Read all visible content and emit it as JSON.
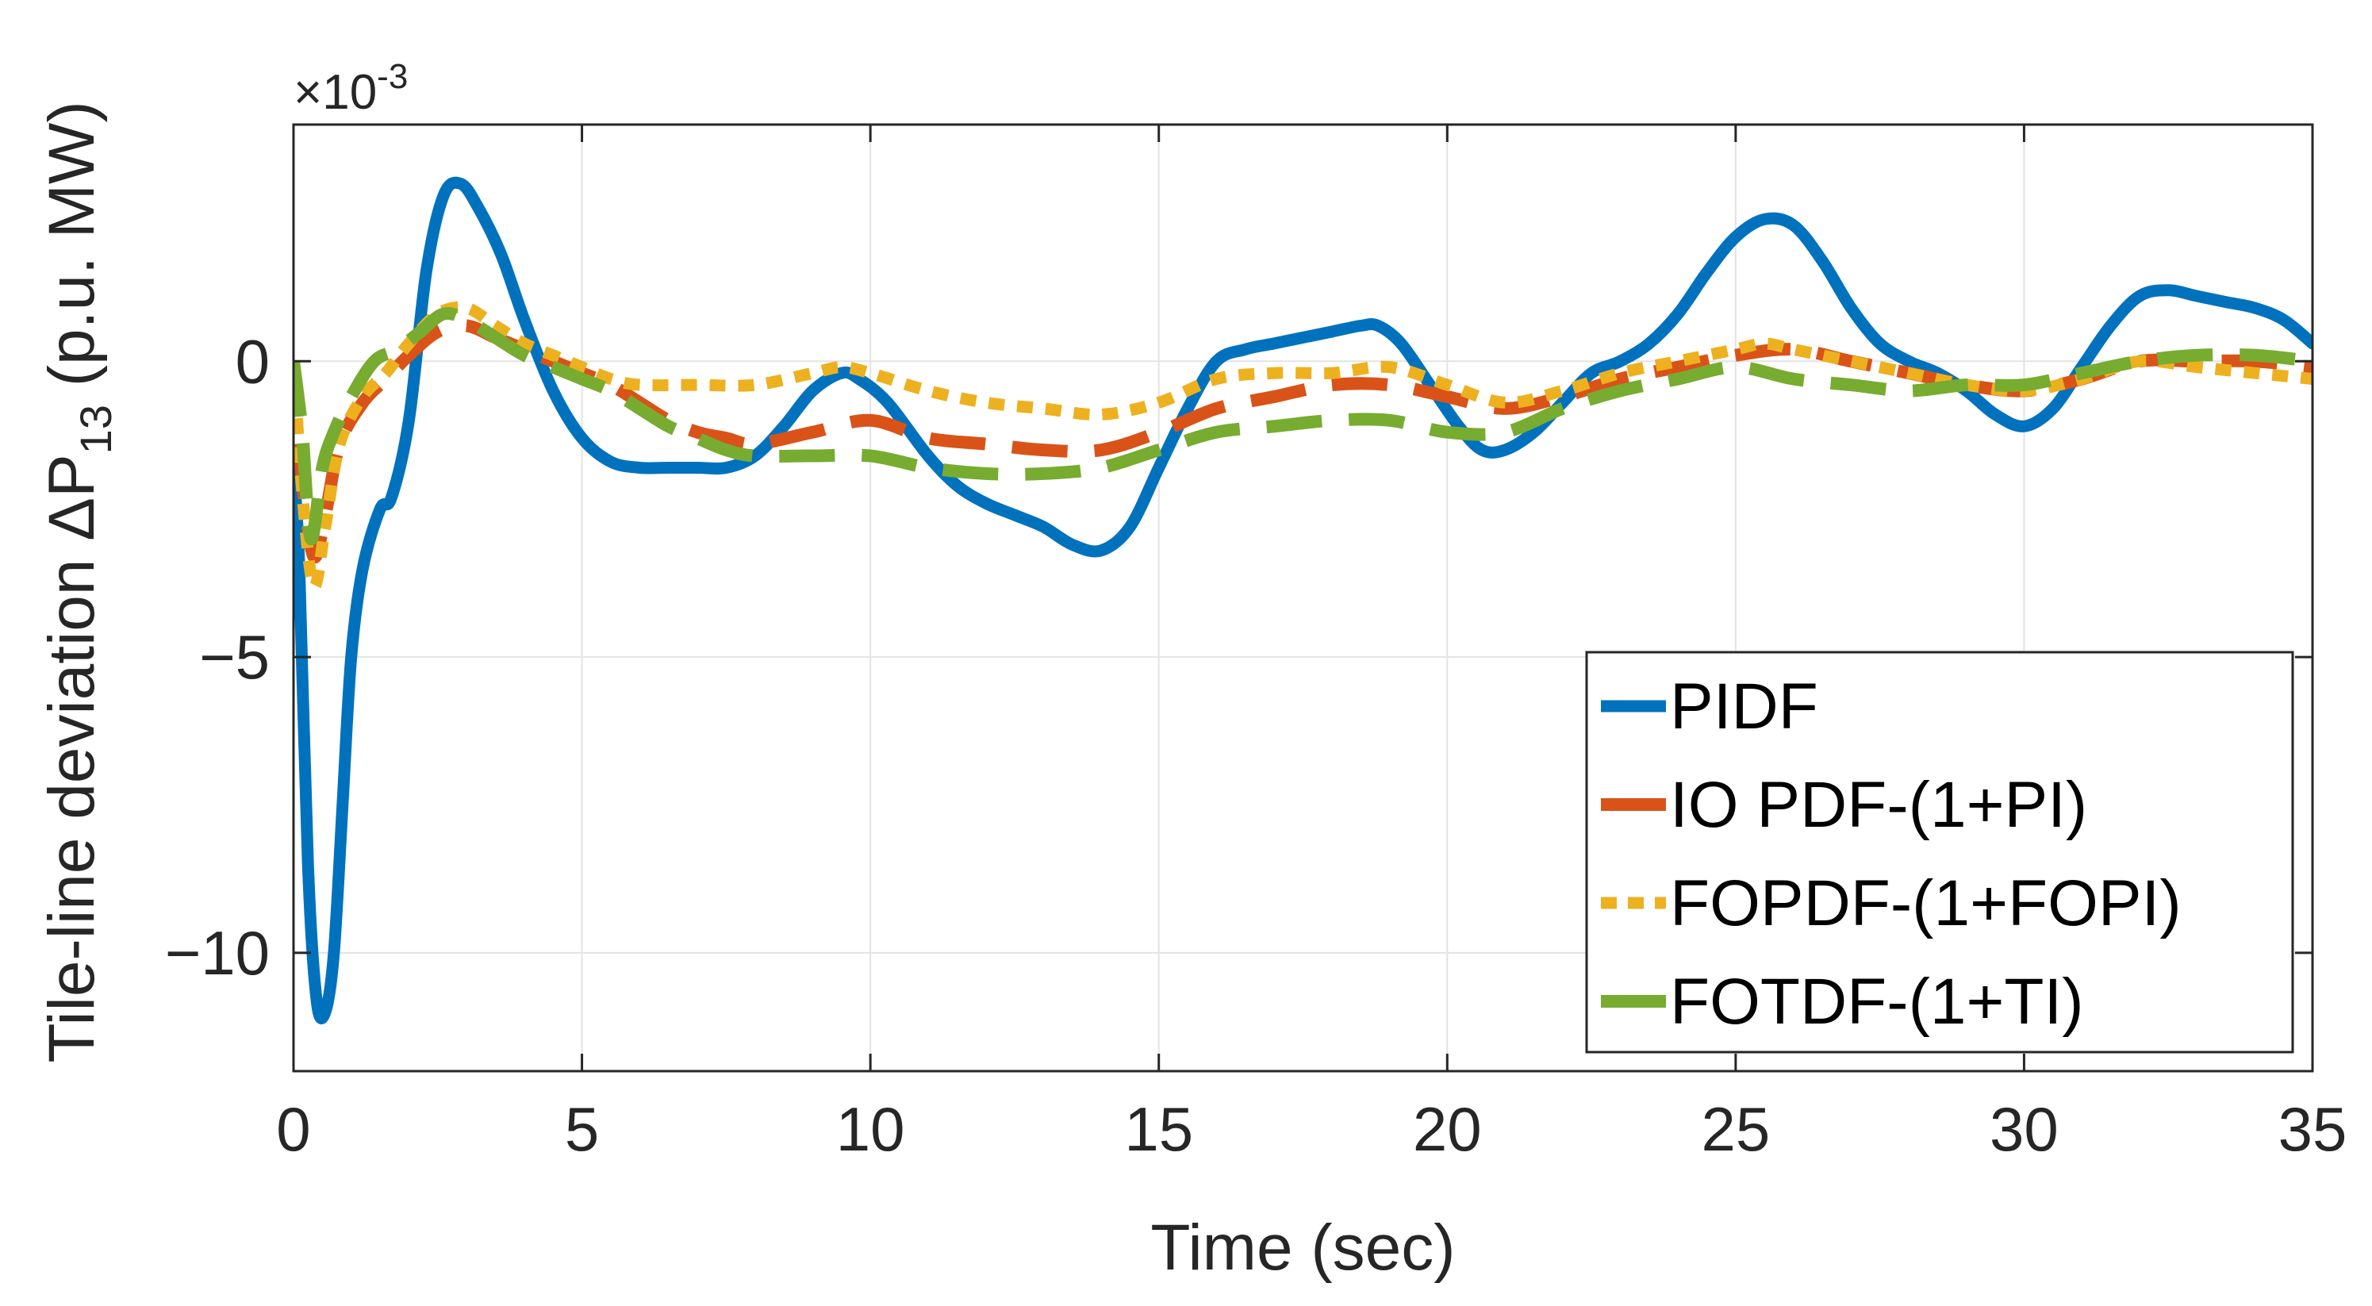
{
  "chart_data": {
    "type": "line",
    "title": "",
    "xlabel": "Time (sec)",
    "ylabel": "Tile-line deviation ΔP",
    "ylabel_subscript": "13",
    "ylabel_units": " (p.u. MW)",
    "y_exponent_prefix": "×10",
    "y_exponent_power": "-3",
    "xlim": [
      0,
      35
    ],
    "ylim": [
      -12,
      4
    ],
    "x_ticks": [
      0,
      5,
      10,
      15,
      20,
      25,
      30,
      35
    ],
    "x_tick_labels": [
      "0",
      "5",
      "10",
      "15",
      "20",
      "25",
      "30",
      "35"
    ],
    "y_ticks": [
      -10,
      -5,
      0
    ],
    "y_tick_labels": [
      "−10",
      "−5",
      "0"
    ],
    "grid": true,
    "legend_position": "bottom-right",
    "series": [
      {
        "name": "PIDF",
        "color": "#0072BD",
        "style": "solid",
        "x": [
          0,
          0.1,
          0.25,
          0.4,
          0.55,
          0.7,
          0.85,
          1.0,
          1.2,
          1.5,
          1.7,
          2.0,
          2.3,
          2.6,
          2.9,
          3.2,
          3.6,
          4.0,
          4.5,
          5.0,
          5.5,
          6.0,
          6.5,
          7.0,
          7.5,
          8.0,
          8.5,
          9.0,
          9.5,
          9.8,
          10.3,
          11.0,
          11.5,
          12.0,
          12.5,
          13.0,
          13.5,
          14.0,
          14.5,
          15.0,
          15.5,
          16.0,
          16.5,
          17.0,
          17.5,
          18.0,
          18.5,
          18.8,
          19.2,
          19.7,
          20.2,
          20.6,
          21.0,
          21.5,
          22.0,
          22.5,
          23.0,
          23.5,
          24.0,
          24.5,
          25.0,
          25.5,
          26.0,
          26.5,
          27.0,
          27.5,
          28.0,
          28.5,
          29.0,
          29.5,
          30.0,
          30.5,
          31.0,
          31.5,
          32.0,
          32.5,
          33.0,
          33.5,
          34.0,
          34.5,
          35.0
        ],
        "values": [
          -1.8,
          -3.5,
          -8.5,
          -10.8,
          -11.0,
          -10.0,
          -7.5,
          -5.0,
          -3.5,
          -2.5,
          -2.3,
          -1.0,
          1.5,
          2.8,
          3.0,
          2.6,
          1.8,
          0.7,
          -0.5,
          -1.3,
          -1.7,
          -1.8,
          -1.8,
          -1.8,
          -1.8,
          -1.6,
          -1.1,
          -0.5,
          -0.2,
          -0.3,
          -0.7,
          -1.6,
          -2.1,
          -2.4,
          -2.6,
          -2.8,
          -3.1,
          -3.2,
          -2.8,
          -1.8,
          -0.8,
          0.0,
          0.2,
          0.3,
          0.4,
          0.5,
          0.6,
          0.6,
          0.3,
          -0.4,
          -1.1,
          -1.5,
          -1.5,
          -1.2,
          -0.7,
          -0.2,
          0.0,
          0.3,
          0.8,
          1.5,
          2.1,
          2.4,
          2.3,
          1.7,
          0.9,
          0.3,
          0.0,
          -0.2,
          -0.5,
          -0.9,
          -1.1,
          -0.8,
          -0.1,
          0.6,
          1.1,
          1.2,
          1.1,
          1.0,
          0.9,
          0.7,
          0.3
        ]
      },
      {
        "name": "IO PDF-(1+PI)",
        "color": "#D95319",
        "style": "dashed",
        "x": [
          0,
          0.15,
          0.35,
          0.55,
          0.8,
          1.2,
          1.6,
          2.0,
          2.5,
          3.0,
          3.5,
          4.0,
          4.5,
          5.0,
          5.5,
          6.0,
          6.5,
          7.0,
          7.5,
          8.0,
          9.0,
          10.0,
          11.0,
          12.0,
          13.0,
          14.0,
          15.0,
          16.0,
          17.0,
          18.0,
          19.0,
          20.0,
          21.0,
          22.0,
          23.0,
          24.0,
          25.0,
          26.0,
          27.0,
          28.0,
          29.0,
          30.0,
          31.0,
          32.0,
          33.0,
          34.0,
          35.0
        ],
        "values": [
          0,
          -2.0,
          -3.3,
          -2.6,
          -1.4,
          -0.7,
          -0.3,
          0.1,
          0.5,
          0.6,
          0.4,
          0.2,
          0.0,
          -0.2,
          -0.4,
          -0.7,
          -1.0,
          -1.2,
          -1.3,
          -1.4,
          -1.2,
          -1.0,
          -1.3,
          -1.4,
          -1.5,
          -1.5,
          -1.2,
          -0.8,
          -0.6,
          -0.4,
          -0.4,
          -0.6,
          -0.8,
          -0.6,
          -0.3,
          -0.1,
          0.1,
          0.2,
          0.0,
          -0.2,
          -0.4,
          -0.5,
          -0.3,
          0.0,
          0.0,
          0.0,
          -0.1
        ]
      },
      {
        "name": "FOPDF-(1+FOPI)",
        "color": "#EDB120",
        "style": "dotted",
        "x": [
          0,
          0.15,
          0.35,
          0.55,
          0.8,
          1.2,
          1.6,
          2.0,
          2.5,
          3.0,
          3.5,
          4.0,
          4.5,
          5.0,
          5.5,
          6.0,
          7.0,
          8.0,
          9.0,
          9.5,
          10.0,
          11.0,
          12.0,
          13.0,
          14.0,
          15.0,
          16.0,
          17.0,
          18.0,
          19.0,
          20.0,
          21.0,
          22.0,
          23.0,
          24.0,
          25.0,
          25.5,
          26.0,
          27.0,
          28.0,
          29.0,
          30.0,
          31.0,
          32.0,
          33.0,
          34.0,
          35.0
        ],
        "values": [
          0,
          -2.2,
          -3.8,
          -2.8,
          -1.4,
          -0.6,
          -0.2,
          0.3,
          0.8,
          0.9,
          0.6,
          0.3,
          0.1,
          -0.1,
          -0.3,
          -0.4,
          -0.4,
          -0.4,
          -0.2,
          -0.1,
          -0.2,
          -0.5,
          -0.7,
          -0.8,
          -0.9,
          -0.7,
          -0.3,
          -0.2,
          -0.2,
          -0.1,
          -0.4,
          -0.7,
          -0.5,
          -0.2,
          0.0,
          0.2,
          0.3,
          0.2,
          0.0,
          -0.2,
          -0.4,
          -0.5,
          -0.3,
          0.0,
          -0.1,
          -0.2,
          -0.3
        ]
      },
      {
        "name": "FOTDF-(1+TI)",
        "color": "#77AC30",
        "style": "dashed",
        "x": [
          0,
          0.15,
          0.3,
          0.5,
          0.7,
          1.0,
          1.4,
          1.8,
          2.2,
          2.6,
          3.0,
          3.5,
          4.0,
          4.5,
          5.0,
          5.5,
          6.0,
          6.5,
          7.0,
          7.5,
          8.0,
          9.0,
          10.0,
          11.0,
          12.0,
          13.0,
          14.0,
          15.0,
          16.0,
          17.0,
          18.0,
          19.0,
          20.0,
          21.0,
          22.0,
          23.0,
          24.0,
          25.0,
          26.0,
          27.0,
          28.0,
          29.0,
          30.0,
          31.0,
          32.0,
          33.0,
          34.0,
          35.0
        ],
        "values": [
          0,
          -1.2,
          -3.0,
          -1.8,
          -1.2,
          -0.6,
          0.0,
          0.2,
          0.5,
          0.8,
          0.7,
          0.4,
          0.1,
          -0.1,
          -0.3,
          -0.5,
          -0.8,
          -1.1,
          -1.3,
          -1.5,
          -1.6,
          -1.6,
          -1.6,
          -1.8,
          -1.9,
          -1.9,
          -1.8,
          -1.5,
          -1.2,
          -1.1,
          -1.0,
          -1.0,
          -1.2,
          -1.2,
          -0.8,
          -0.5,
          -0.3,
          -0.1,
          -0.3,
          -0.4,
          -0.5,
          -0.4,
          -0.4,
          -0.2,
          0.0,
          0.1,
          0.1,
          0.0
        ]
      }
    ]
  }
}
